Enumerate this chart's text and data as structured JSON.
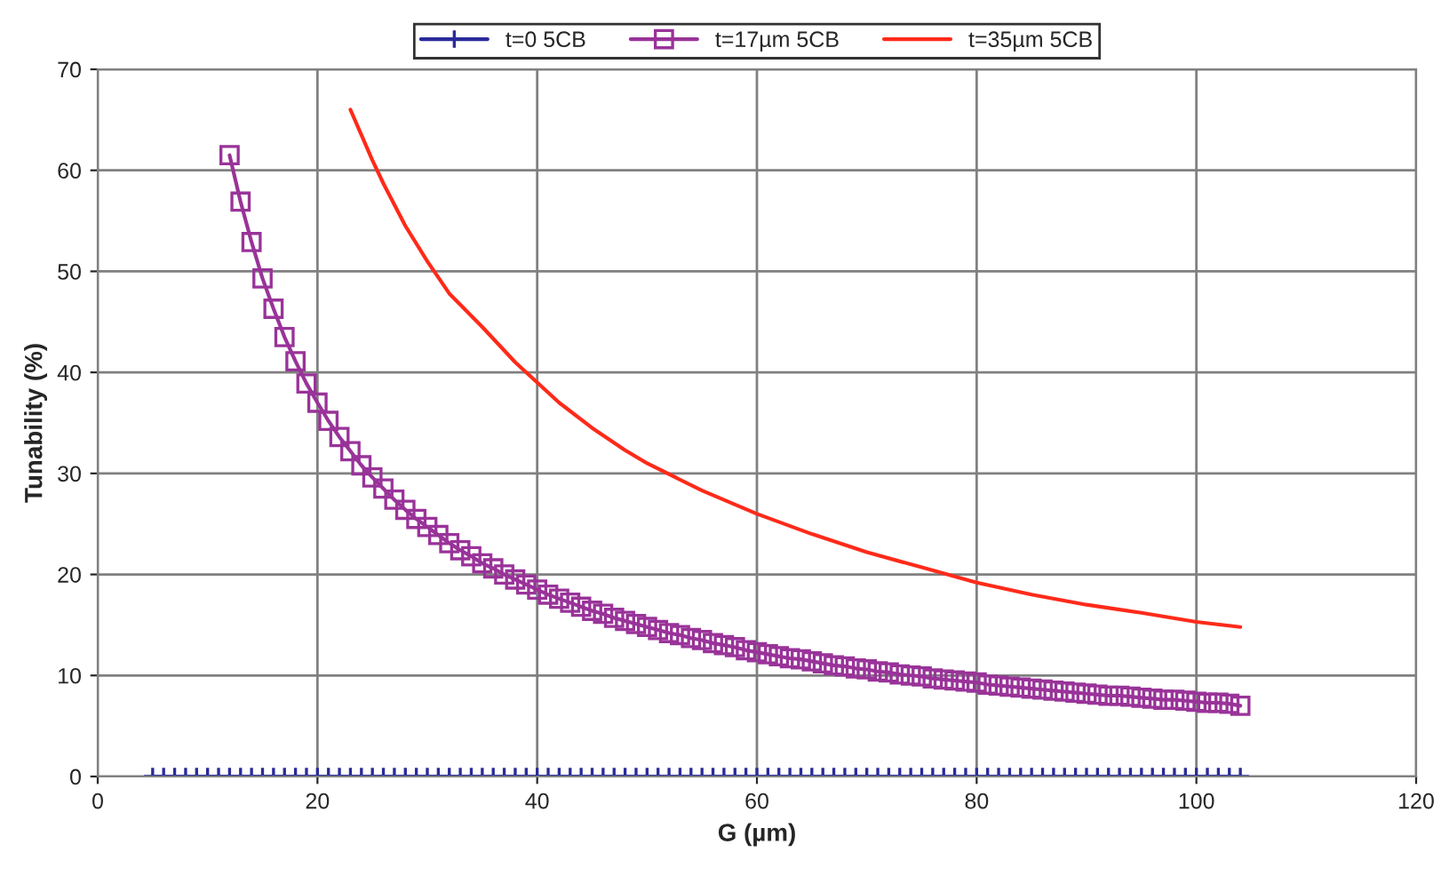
{
  "chart_data": {
    "type": "line",
    "xlabel": "G (µm)",
    "ylabel": "Tunability (%)",
    "xlim": [
      0,
      120
    ],
    "xticks": [
      0,
      20,
      40,
      60,
      80,
      100,
      120
    ],
    "ylim": [
      0,
      70
    ],
    "yticks": [
      0,
      10,
      20,
      30,
      40,
      50,
      60,
      70
    ],
    "grid": true,
    "legend": "top",
    "line_style": "solid",
    "series": [
      {
        "name": "t=0 5CB",
        "color": "#2a2a9a",
        "marker": "cross",
        "x": [
          5,
          6,
          7,
          8,
          9,
          10,
          11,
          12,
          13,
          14,
          15,
          16,
          17,
          18,
          19,
          20,
          21,
          22,
          23,
          24,
          25,
          26,
          27,
          28,
          29,
          30,
          31,
          32,
          33,
          34,
          35,
          36,
          37,
          38,
          39,
          40,
          41,
          42,
          43,
          44,
          45,
          46,
          47,
          48,
          49,
          50,
          51,
          52,
          53,
          54,
          55,
          56,
          57,
          58,
          59,
          60,
          61,
          62,
          63,
          64,
          65,
          66,
          67,
          68,
          69,
          70,
          71,
          72,
          73,
          74,
          75,
          76,
          77,
          78,
          79,
          80,
          81,
          82,
          83,
          84,
          85,
          86,
          87,
          88,
          89,
          90,
          91,
          92,
          93,
          94,
          95,
          96,
          97,
          98,
          99,
          100,
          101,
          102,
          103,
          104
        ],
        "values": [
          0,
          0,
          0,
          0,
          0,
          0,
          0,
          0,
          0,
          0,
          0,
          0,
          0,
          0,
          0,
          0,
          0,
          0,
          0,
          0,
          0,
          0,
          0,
          0,
          0,
          0,
          0,
          0,
          0,
          0,
          0,
          0,
          0,
          0,
          0,
          0,
          0,
          0,
          0,
          0,
          0,
          0,
          0,
          0,
          0,
          0,
          0,
          0,
          0,
          0,
          0,
          0,
          0,
          0,
          0,
          0,
          0,
          0,
          0,
          0,
          0,
          0,
          0,
          0,
          0,
          0,
          0,
          0,
          0,
          0,
          0,
          0,
          0,
          0,
          0,
          0,
          0,
          0,
          0,
          0,
          0,
          0,
          0,
          0,
          0,
          0,
          0,
          0,
          0,
          0,
          0,
          0,
          0,
          0,
          0,
          0,
          0,
          0,
          0,
          0
        ]
      },
      {
        "name": "t=17µm 5CB",
        "color": "#993399",
        "marker": "square",
        "x": [
          12,
          13,
          14,
          15,
          16,
          17,
          18,
          19,
          20,
          21,
          22,
          23,
          24,
          25,
          26,
          27,
          28,
          29,
          30,
          31,
          32,
          33,
          34,
          35,
          36,
          37,
          38,
          39,
          40,
          41,
          42,
          43,
          44,
          45,
          46,
          47,
          48,
          49,
          50,
          51,
          52,
          53,
          54,
          55,
          56,
          57,
          58,
          59,
          60,
          61,
          62,
          63,
          64,
          65,
          66,
          67,
          68,
          69,
          70,
          71,
          72,
          73,
          74,
          75,
          76,
          77,
          78,
          79,
          80,
          81,
          82,
          83,
          84,
          85,
          86,
          87,
          88,
          89,
          90,
          91,
          92,
          93,
          94,
          95,
          96,
          97,
          98,
          99,
          100,
          101,
          102,
          103,
          104
        ],
        "values": [
          61.5,
          56.9,
          52.9,
          49.3,
          46.3,
          43.5,
          41.1,
          38.9,
          37.0,
          35.2,
          33.6,
          32.2,
          30.8,
          29.6,
          28.5,
          27.4,
          26.4,
          25.5,
          24.7,
          23.9,
          23.1,
          22.4,
          21.8,
          21.1,
          20.6,
          20.0,
          19.5,
          19.0,
          18.5,
          18.0,
          17.6,
          17.2,
          16.8,
          16.4,
          16.1,
          15.7,
          15.4,
          15.1,
          14.8,
          14.5,
          14.2,
          14.0,
          13.7,
          13.5,
          13.2,
          13.0,
          12.8,
          12.5,
          12.3,
          12.1,
          11.9,
          11.7,
          11.6,
          11.4,
          11.2,
          11.0,
          10.9,
          10.7,
          10.6,
          10.4,
          10.3,
          10.1,
          10.0,
          9.9,
          9.7,
          9.6,
          9.5,
          9.4,
          9.3,
          9.1,
          9.0,
          8.9,
          8.8,
          8.7,
          8.6,
          8.5,
          8.4,
          8.3,
          8.2,
          8.1,
          8.0,
          8.0,
          7.9,
          7.8,
          7.7,
          7.6,
          7.6,
          7.5,
          7.4,
          7.3,
          7.3,
          7.2,
          7.0
        ]
      },
      {
        "name": "t=35µm 5CB",
        "color": "#ff2a1a",
        "marker": "none",
        "x": [
          23,
          24,
          25,
          26,
          28,
          30,
          32,
          35,
          38,
          40,
          42,
          45,
          48,
          50,
          55,
          60,
          65,
          70,
          75,
          80,
          85,
          90,
          95,
          100,
          104
        ],
        "values": [
          66,
          63.5,
          61,
          58.7,
          54.5,
          51,
          47.8,
          44.5,
          41,
          39,
          37,
          34.5,
          32.3,
          31,
          28.3,
          26,
          24,
          22.2,
          20.7,
          19.2,
          18,
          17,
          16.2,
          15.3,
          14.8
        ]
      }
    ]
  }
}
